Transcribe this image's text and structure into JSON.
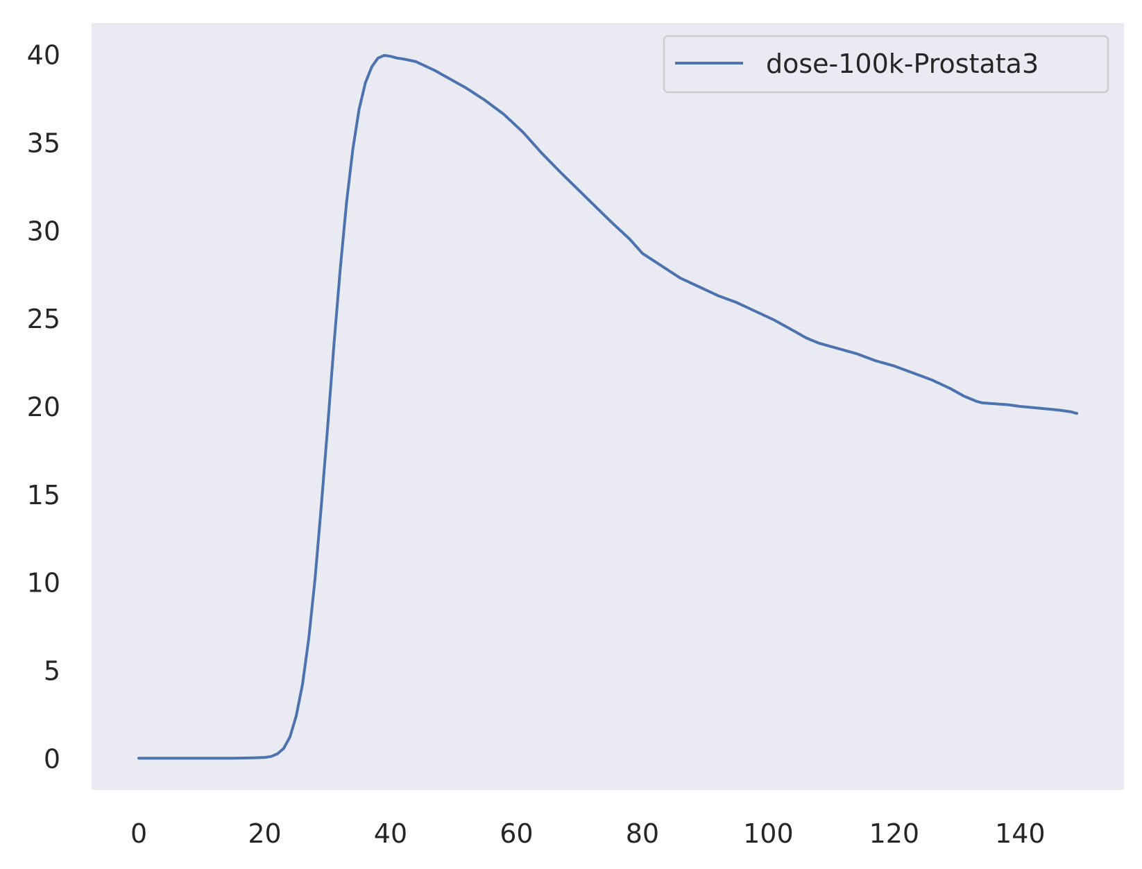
{
  "chart_data": {
    "type": "line",
    "title": "",
    "xlabel": "",
    "ylabel": "",
    "xlim": [
      -7.5,
      156.5
    ],
    "ylim": [
      -1.8,
      41.8
    ],
    "grid": false,
    "legend": "top-right",
    "background": "#eaeaf2",
    "xticks": [
      0,
      20,
      40,
      60,
      80,
      100,
      120,
      140
    ],
    "yticks": [
      0,
      5,
      10,
      15,
      20,
      25,
      30,
      35,
      40
    ],
    "series": [
      {
        "name": "dose-100k-Prostata3",
        "color": "#4c72b0",
        "x": [
          0,
          5,
          10,
          15,
          18,
          20,
          21,
          22,
          23,
          24,
          25,
          26,
          27,
          28,
          29,
          30,
          31,
          32,
          33,
          34,
          35,
          36,
          37,
          38,
          39,
          40,
          41,
          42,
          44,
          47,
          50,
          52,
          55,
          58,
          61,
          64,
          67,
          71,
          75,
          78,
          80,
          83,
          86,
          89,
          92,
          95,
          98,
          101,
          104,
          106,
          108,
          111,
          114,
          117,
          120,
          123,
          126,
          129,
          131,
          133,
          134,
          136,
          138,
          140,
          143,
          146,
          148,
          149
        ],
        "y": [
          0,
          0,
          0,
          0,
          0.02,
          0.05,
          0.1,
          0.25,
          0.55,
          1.2,
          2.4,
          4.2,
          6.8,
          10.2,
          14.4,
          18.8,
          23.5,
          27.8,
          31.6,
          34.6,
          36.9,
          38.4,
          39.3,
          39.8,
          39.95,
          39.9,
          39.8,
          39.75,
          39.6,
          39.1,
          38.5,
          38.1,
          37.4,
          36.6,
          35.6,
          34.4,
          33.3,
          31.9,
          30.5,
          29.5,
          28.7,
          28.0,
          27.3,
          26.8,
          26.3,
          25.9,
          25.4,
          24.9,
          24.3,
          23.9,
          23.6,
          23.3,
          23.0,
          22.6,
          22.3,
          21.9,
          21.5,
          21.0,
          20.6,
          20.3,
          20.2,
          20.15,
          20.1,
          20.0,
          19.9,
          19.8,
          19.7,
          19.6
        ]
      }
    ]
  }
}
